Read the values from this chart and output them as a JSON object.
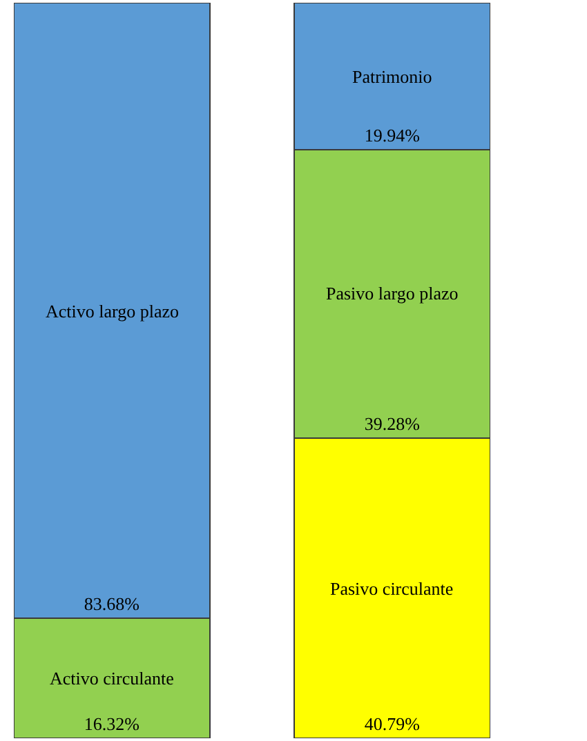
{
  "chart_data": {
    "type": "bar",
    "stacked": true,
    "categories": [
      null,
      null
    ],
    "legend": false,
    "series": [
      {
        "name": "Activo circulante",
        "color": "#92d050",
        "values": [
          16.32,
          null
        ],
        "value_labels": [
          "16.32%",
          null
        ]
      },
      {
        "name": "Activo largo plazo",
        "color": "#5b9bd5",
        "values": [
          83.68,
          null
        ],
        "value_labels": [
          "83.68%",
          null
        ]
      },
      {
        "name": "Pasivo circulante",
        "color": "#ffff00",
        "values": [
          null,
          40.79
        ],
        "value_labels": [
          null,
          "40.79%"
        ]
      },
      {
        "name": "Pasivo largo plazo",
        "color": "#92d050",
        "values": [
          null,
          39.28
        ],
        "value_labels": [
          null,
          "39.28%"
        ]
      },
      {
        "name": "Patrimonio",
        "color": "#5b9bd5",
        "values": [
          null,
          19.94
        ],
        "value_labels": [
          null,
          "19.94%"
        ]
      }
    ]
  }
}
